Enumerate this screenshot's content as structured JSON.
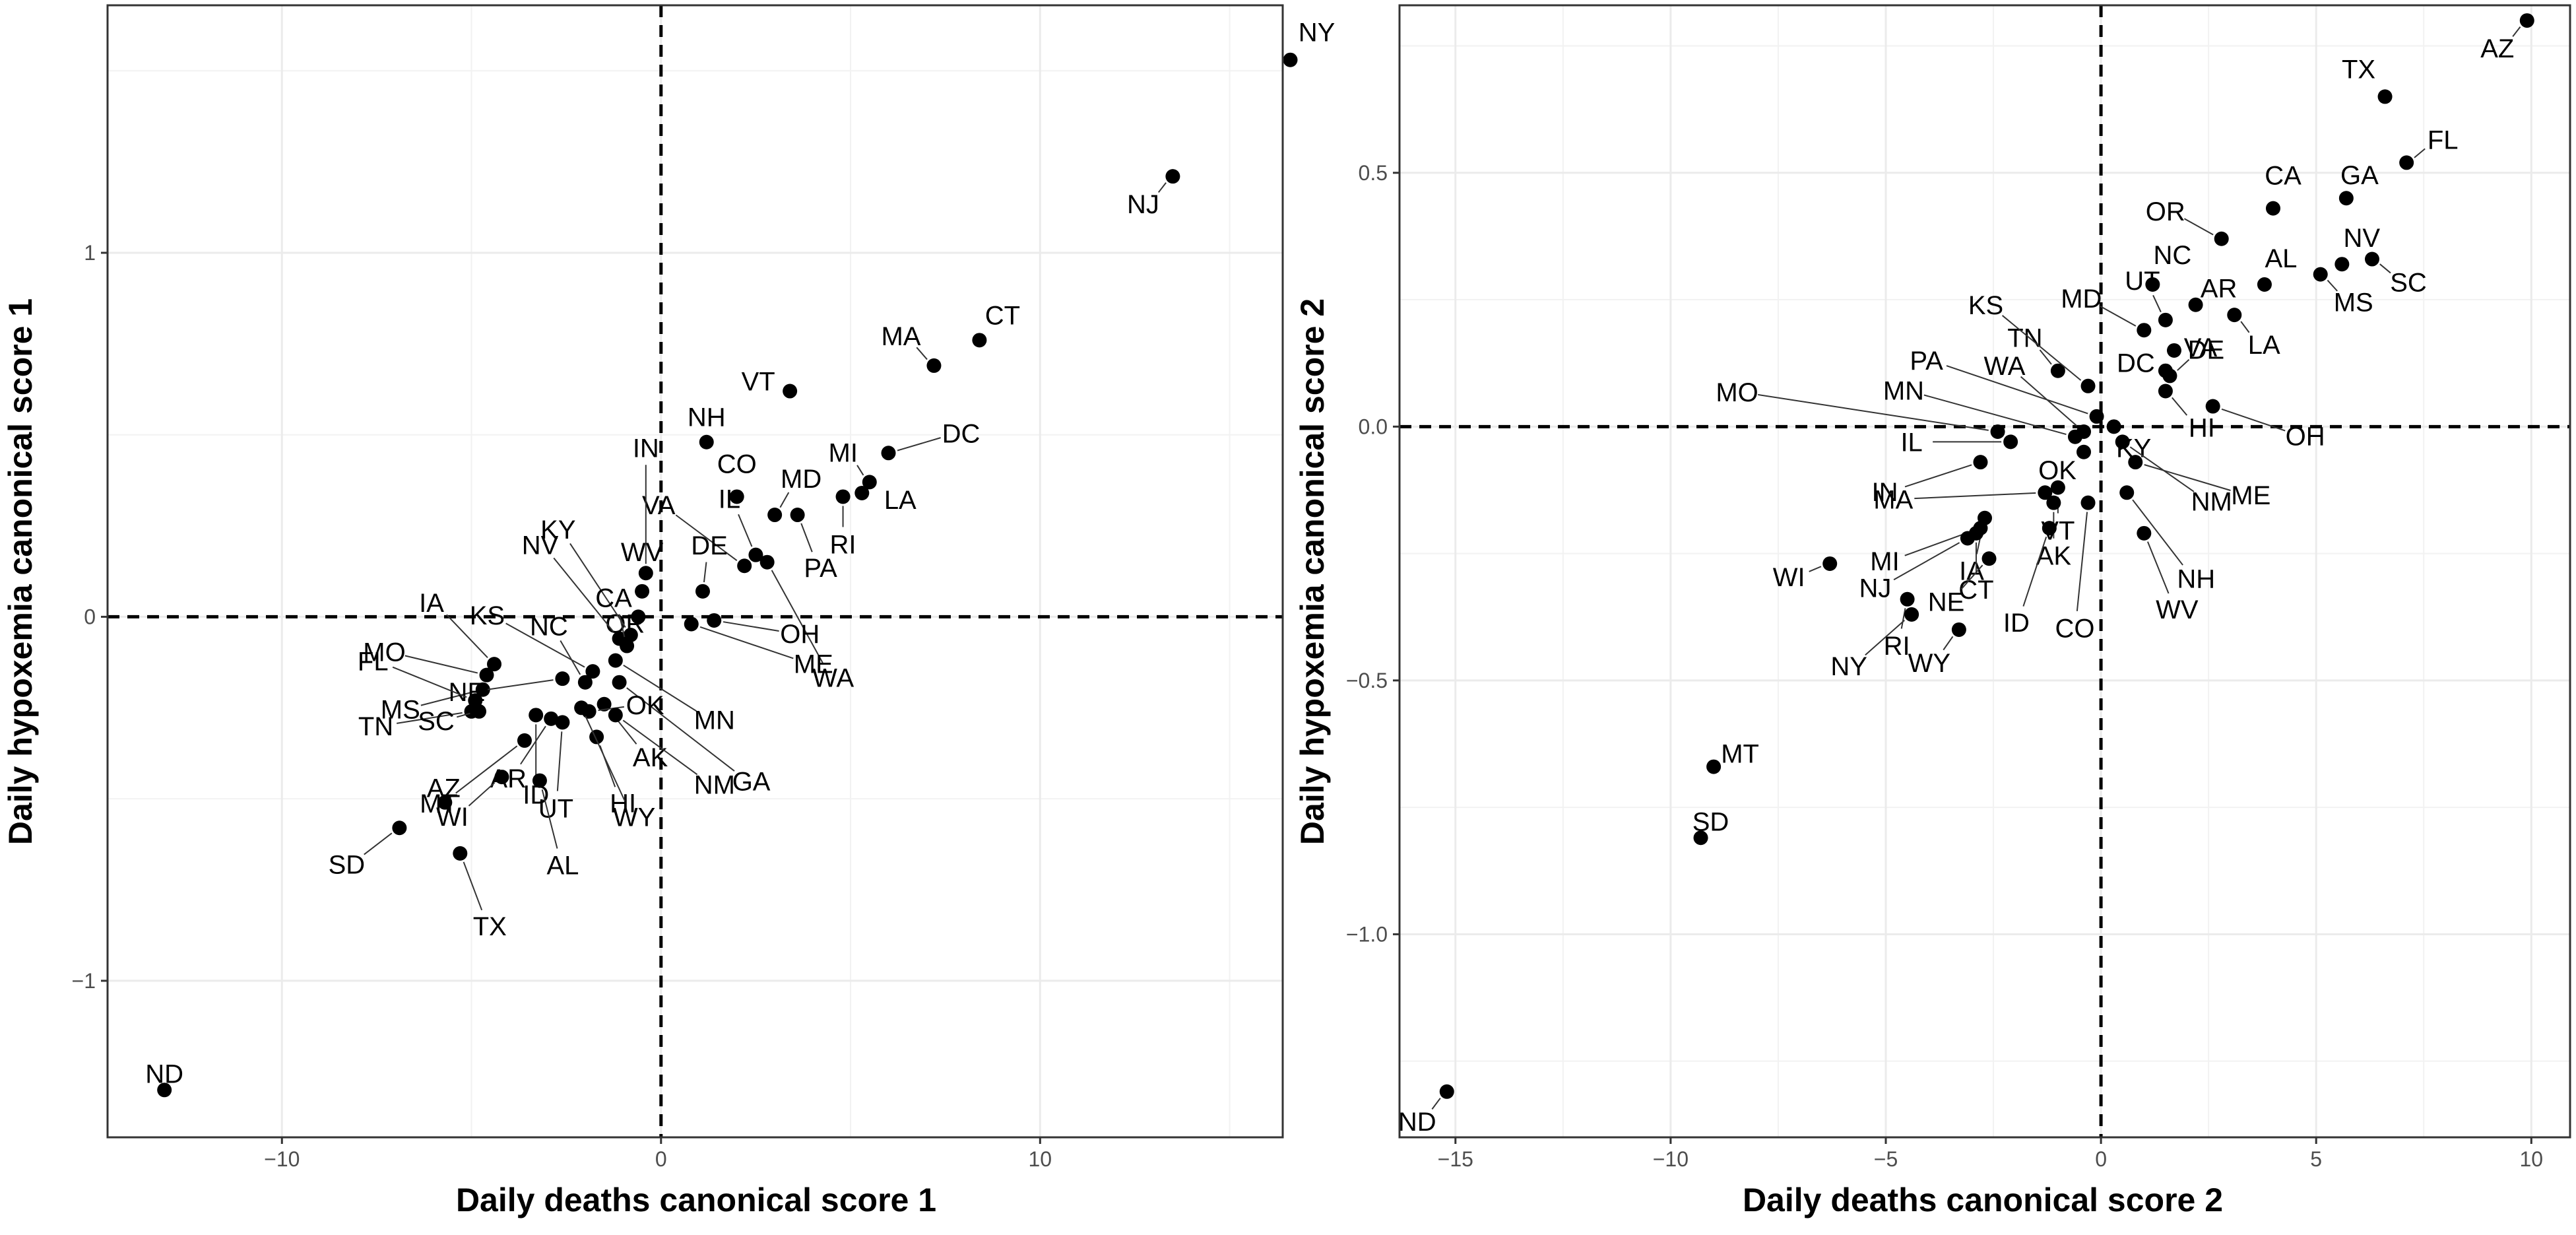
{
  "chart_data": [
    {
      "type": "scatter",
      "xlabel": "Daily deaths canonical score 1",
      "ylabel": "Daily hypoxemia canonical score 1",
      "xlim": [
        -14.6,
        16.4
      ],
      "ylim": [
        -1.43,
        1.68
      ],
      "x_ticks": [
        -10,
        0,
        10
      ],
      "x_tick_labels": [
        "−10",
        "0",
        "10"
      ],
      "y_ticks": [
        -1,
        0,
        1
      ],
      "y_tick_labels": [
        "−1",
        "0",
        "1"
      ],
      "grid": true,
      "reference_lines": {
        "x": 0,
        "y": 0,
        "style": "dashed"
      },
      "points": [
        {
          "label": "NY",
          "x": 16.6,
          "y": 1.53
        },
        {
          "label": "NJ",
          "x": 13.5,
          "y": 1.21
        },
        {
          "label": "CT",
          "x": 8.4,
          "y": 0.76
        },
        {
          "label": "MA",
          "x": 7.2,
          "y": 0.69
        },
        {
          "label": "VT",
          "x": 3.4,
          "y": 0.62
        },
        {
          "label": "DC",
          "x": 6.0,
          "y": 0.45
        },
        {
          "label": "MI",
          "x": 5.5,
          "y": 0.37
        },
        {
          "label": "LA",
          "x": 5.3,
          "y": 0.34
        },
        {
          "label": "RI",
          "x": 4.8,
          "y": 0.33
        },
        {
          "label": "NH",
          "x": 1.2,
          "y": 0.48
        },
        {
          "label": "CO",
          "x": 2.0,
          "y": 0.33
        },
        {
          "label": "MD",
          "x": 3.0,
          "y": 0.28
        },
        {
          "label": "PA",
          "x": 3.6,
          "y": 0.28
        },
        {
          "label": "IL",
          "x": 2.5,
          "y": 0.17
        },
        {
          "label": "VA",
          "x": 2.2,
          "y": 0.14
        },
        {
          "label": "IN",
          "x": -0.4,
          "y": 0.12
        },
        {
          "label": "WV",
          "x": -0.5,
          "y": 0.07
        },
        {
          "label": "DE",
          "x": 1.1,
          "y": 0.07
        },
        {
          "label": "WA",
          "x": 2.8,
          "y": 0.15
        },
        {
          "label": "OH",
          "x": 1.4,
          "y": -0.01
        },
        {
          "label": "OR",
          "x": -0.6,
          "y": 0.0
        },
        {
          "label": "ME",
          "x": 0.8,
          "y": -0.02
        },
        {
          "label": "KY",
          "x": -0.8,
          "y": -0.05
        },
        {
          "label": "NV",
          "x": -1.1,
          "y": -0.06
        },
        {
          "label": "CA",
          "x": -0.9,
          "y": -0.08
        },
        {
          "label": "MN",
          "x": -1.2,
          "y": -0.12
        },
        {
          "label": "KS",
          "x": -1.8,
          "y": -0.15
        },
        {
          "label": "NC",
          "x": -2.0,
          "y": -0.18
        },
        {
          "label": "IA",
          "x": -4.4,
          "y": -0.13
        },
        {
          "label": "MO",
          "x": -4.6,
          "y": -0.16
        },
        {
          "label": "MS",
          "x": -4.7,
          "y": -0.2
        },
        {
          "label": "NE",
          "x": -2.6,
          "y": -0.17
        },
        {
          "label": "GA",
          "x": -1.1,
          "y": -0.18
        },
        {
          "label": "AK",
          "x": -1.5,
          "y": -0.24
        },
        {
          "label": "OK",
          "x": -1.9,
          "y": -0.26
        },
        {
          "label": "FL",
          "x": -4.9,
          "y": -0.23
        },
        {
          "label": "TN",
          "x": -5.0,
          "y": -0.26
        },
        {
          "label": "SC",
          "x": -4.8,
          "y": -0.26
        },
        {
          "label": "ID",
          "x": -3.3,
          "y": -0.27
        },
        {
          "label": "HI",
          "x": -1.7,
          "y": -0.33
        },
        {
          "label": "NM",
          "x": -1.2,
          "y": -0.27
        },
        {
          "label": "MT",
          "x": -3.6,
          "y": -0.34
        },
        {
          "label": "AR",
          "x": -2.9,
          "y": -0.28
        },
        {
          "label": "UT",
          "x": -2.6,
          "y": -0.29
        },
        {
          "label": "WY",
          "x": -2.1,
          "y": -0.25
        },
        {
          "label": "WI",
          "x": -4.2,
          "y": -0.44
        },
        {
          "label": "AL",
          "x": -3.2,
          "y": -0.45
        },
        {
          "label": "SD",
          "x": -6.9,
          "y": -0.58
        },
        {
          "label": "AZ",
          "x": -5.7,
          "y": -0.51
        },
        {
          "label": "TX",
          "x": -5.3,
          "y": -0.65
        },
        {
          "label": "ND",
          "x": -13.1,
          "y": -1.3
        }
      ]
    },
    {
      "type": "scatter",
      "xlabel": "Daily deaths canonical score 2",
      "ylabel": "Daily hypoxemia canonical score 2",
      "xlim": [
        -16.3,
        10.9
      ],
      "ylim": [
        -1.4,
        0.83
      ],
      "x_ticks": [
        -15,
        -10,
        -5,
        0,
        5,
        10
      ],
      "x_tick_labels": [
        "−15",
        "−10",
        "−5",
        "0",
        "5",
        "10"
      ],
      "y_ticks": [
        -1.0,
        -0.5,
        0.0,
        0.5
      ],
      "y_tick_labels": [
        "−1.0",
        "−0.5",
        "0.0",
        "0.5"
      ],
      "grid": true,
      "reference_lines": {
        "x": 0,
        "y": 0,
        "style": "dashed"
      },
      "points": [
        {
          "label": "AZ",
          "x": 9.9,
          "y": 0.8
        },
        {
          "label": "TX",
          "x": 6.6,
          "y": 0.65
        },
        {
          "label": "FL",
          "x": 7.1,
          "y": 0.52
        },
        {
          "label": "GA",
          "x": 5.7,
          "y": 0.45
        },
        {
          "label": "CA",
          "x": 4.0,
          "y": 0.43
        },
        {
          "label": "NV",
          "x": 5.6,
          "y": 0.32
        },
        {
          "label": "SC",
          "x": 6.3,
          "y": 0.33
        },
        {
          "label": "MS",
          "x": 5.1,
          "y": 0.3
        },
        {
          "label": "OR",
          "x": 2.8,
          "y": 0.37
        },
        {
          "label": "AL",
          "x": 3.8,
          "y": 0.28
        },
        {
          "label": "NC",
          "x": 1.2,
          "y": 0.28
        },
        {
          "label": "AR",
          "x": 2.2,
          "y": 0.24
        },
        {
          "label": "LA",
          "x": 3.1,
          "y": 0.22
        },
        {
          "label": "UT",
          "x": 1.5,
          "y": 0.21
        },
        {
          "label": "VA",
          "x": 1.7,
          "y": 0.15
        },
        {
          "label": "MD",
          "x": 1.0,
          "y": 0.19
        },
        {
          "label": "TN",
          "x": -1.0,
          "y": 0.11
        },
        {
          "label": "DC",
          "x": 1.5,
          "y": 0.11
        },
        {
          "label": "DE",
          "x": 1.6,
          "y": 0.1
        },
        {
          "label": "KS",
          "x": -0.3,
          "y": 0.08
        },
        {
          "label": "PA",
          "x": -0.1,
          "y": 0.02
        },
        {
          "label": "KY",
          "x": 0.3,
          "y": 0.0
        },
        {
          "label": "OH",
          "x": 2.6,
          "y": 0.04
        },
        {
          "label": "HI",
          "x": 1.5,
          "y": 0.07
        },
        {
          "label": "WA",
          "x": -0.4,
          "y": -0.01
        },
        {
          "label": "MN",
          "x": -0.6,
          "y": -0.02
        },
        {
          "label": "MO",
          "x": -2.4,
          "y": -0.01
        },
        {
          "label": "IL",
          "x": -2.1,
          "y": -0.03
        },
        {
          "label": "IN",
          "x": -2.8,
          "y": -0.07
        },
        {
          "label": "OK",
          "x": -0.4,
          "y": -0.05
        },
        {
          "label": "NM",
          "x": 0.5,
          "y": -0.03
        },
        {
          "label": "ME",
          "x": 0.8,
          "y": -0.07
        },
        {
          "label": "VT",
          "x": -1.0,
          "y": -0.12
        },
        {
          "label": "MA",
          "x": -1.3,
          "y": -0.13
        },
        {
          "label": "AK",
          "x": -1.1,
          "y": -0.15
        },
        {
          "label": "NH",
          "x": 0.6,
          "y": -0.13
        },
        {
          "label": "IA",
          "x": -2.7,
          "y": -0.18
        },
        {
          "label": "MI",
          "x": -2.8,
          "y": -0.2
        },
        {
          "label": "WV",
          "x": 1.0,
          "y": -0.21
        },
        {
          "label": "NJ",
          "x": -3.1,
          "y": -0.22
        },
        {
          "label": "CT",
          "x": -2.9,
          "y": -0.21
        },
        {
          "label": "ID",
          "x": -1.2,
          "y": -0.2
        },
        {
          "label": "CO",
          "x": -0.3,
          "y": -0.15
        },
        {
          "label": "WI",
          "x": -6.3,
          "y": -0.27
        },
        {
          "label": "RI",
          "x": -4.5,
          "y": -0.34
        },
        {
          "label": "NE",
          "x": -2.6,
          "y": -0.26
        },
        {
          "label": "NY",
          "x": -4.4,
          "y": -0.37
        },
        {
          "label": "WY",
          "x": -3.3,
          "y": -0.4
        },
        {
          "label": "MT",
          "x": -9.0,
          "y": -0.67
        },
        {
          "label": "SD",
          "x": -9.3,
          "y": -0.81
        },
        {
          "label": "ND",
          "x": -15.2,
          "y": -1.31
        }
      ]
    }
  ]
}
